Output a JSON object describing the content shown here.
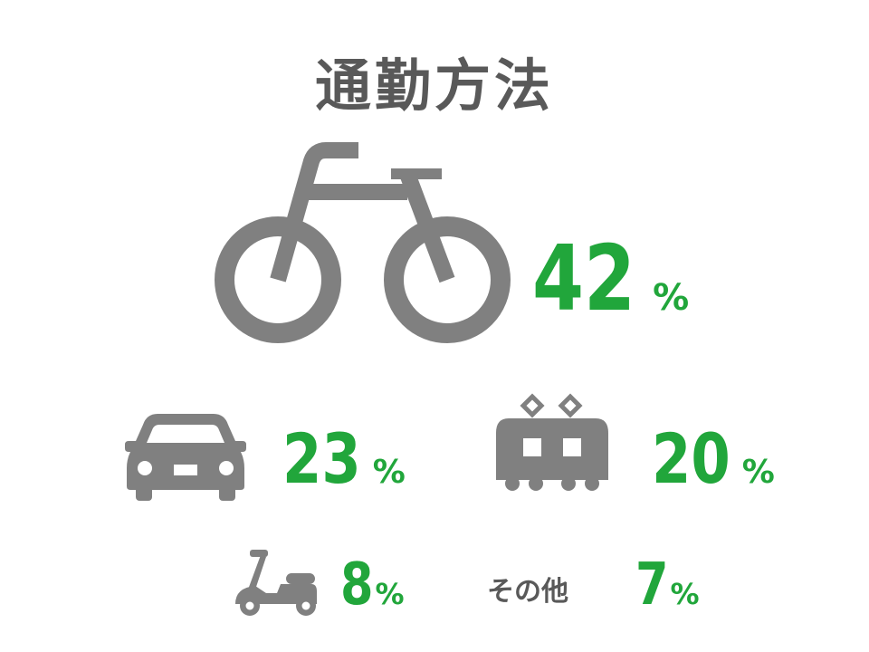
{
  "chart_data": {
    "type": "table",
    "title": "通勤方法",
    "categories": [
      "自転車",
      "車",
      "電車",
      "バイク",
      "その他"
    ],
    "values": [
      42,
      23,
      20,
      8,
      7
    ],
    "unit": "%",
    "items": [
      {
        "icon": "bicycle-icon",
        "value": 42,
        "unit": "%"
      },
      {
        "icon": "car-icon",
        "value": 23,
        "unit": "%"
      },
      {
        "icon": "train-icon",
        "value": 20,
        "unit": "%"
      },
      {
        "icon": "scooter-icon",
        "value": 8,
        "unit": "%"
      },
      {
        "label": "その他",
        "value": 7,
        "unit": "%"
      }
    ]
  },
  "colors": {
    "value": "#21a63b",
    "icon": "#808080",
    "title": "#595959"
  }
}
